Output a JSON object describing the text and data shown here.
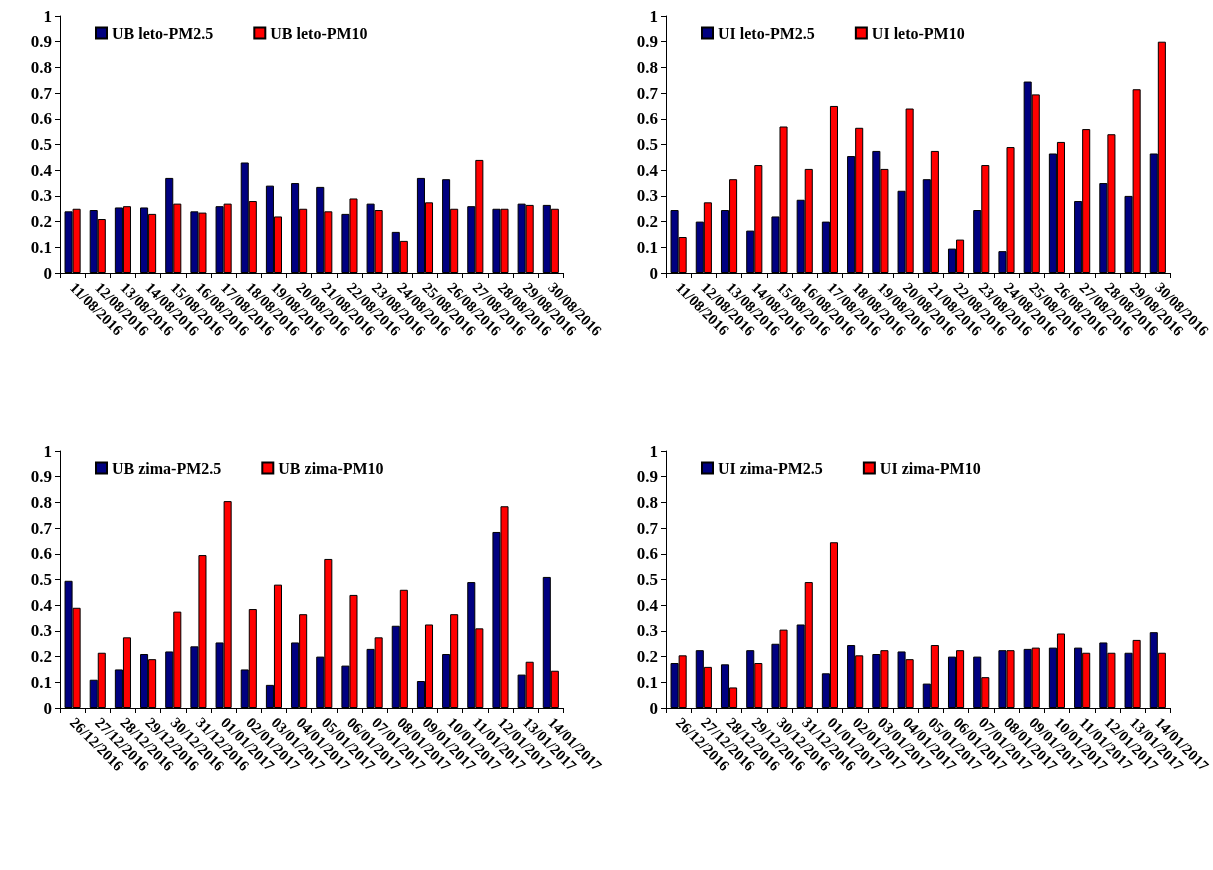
{
  "chart_data": [
    {
      "type": "bar",
      "categories": [
        "11/08/2016",
        "12/08/2016",
        "13/08/2016",
        "14/08/2016",
        "15/08/2016",
        "16/08/2016",
        "17/08/2016",
        "18/08/2016",
        "19/08/2016",
        "20/08/2016",
        "21/08/2016",
        "22/08/2016",
        "23/08/2016",
        "24/08/2016",
        "25/08/2016",
        "26/08/2016",
        "27/08/2016",
        "28/08/2016",
        "29/08/2016",
        "30/08/2016"
      ],
      "series": [
        {
          "name": "UB leto-PM2.5",
          "color": "#000080",
          "values": [
            0.24,
            0.245,
            0.255,
            0.255,
            0.37,
            0.24,
            0.26,
            0.43,
            0.34,
            0.35,
            0.335,
            0.23,
            0.27,
            0.16,
            0.37,
            0.365,
            0.26,
            0.25,
            0.27,
            0.265
          ]
        },
        {
          "name": "UB leto-PM10",
          "color": "#ff0000",
          "values": [
            0.25,
            0.21,
            0.26,
            0.23,
            0.27,
            0.235,
            0.27,
            0.28,
            0.22,
            0.25,
            0.24,
            0.29,
            0.245,
            0.125,
            0.275,
            0.25,
            0.44,
            0.25,
            0.265,
            0.25
          ]
        }
      ],
      "ylim": [
        0,
        1
      ],
      "yticks": [
        0,
        0.1,
        0.2,
        0.3,
        0.4,
        0.5,
        0.6,
        0.7,
        0.8,
        0.9,
        1
      ],
      "grid": false,
      "legend": "top"
    },
    {
      "type": "bar",
      "categories": [
        "11/08/2016",
        "12/08/2016",
        "13/08/2016",
        "14/08/2016",
        "15/08/2016",
        "16/08/2016",
        "17/08/2016",
        "18/08/2016",
        "19/08/2016",
        "20/08/2016",
        "21/08/2016",
        "22/08/2016",
        "23/08/2016",
        "24/08/2016",
        "25/08/2016",
        "26/08/2016",
        "27/08/2016",
        "28/08/2016",
        "29/08/2016",
        "30/08/2016"
      ],
      "series": [
        {
          "name": "UI leto-PM2.5",
          "color": "#000080",
          "values": [
            0.245,
            0.2,
            0.245,
            0.165,
            0.22,
            0.285,
            0.2,
            0.455,
            0.475,
            0.32,
            0.365,
            0.095,
            0.245,
            0.085,
            0.745,
            0.465,
            0.28,
            0.35,
            0.3,
            0.465
          ]
        },
        {
          "name": "UI leto-PM10",
          "color": "#ff0000",
          "values": [
            0.14,
            0.275,
            0.365,
            0.42,
            0.57,
            0.405,
            0.65,
            0.565,
            0.405,
            0.64,
            0.475,
            0.13,
            0.42,
            0.49,
            0.695,
            0.51,
            0.56,
            0.54,
            0.715,
            0.9
          ]
        }
      ],
      "ylim": [
        0,
        1
      ],
      "yticks": [
        0,
        0.1,
        0.2,
        0.3,
        0.4,
        0.5,
        0.6,
        0.7,
        0.8,
        0.9,
        1
      ],
      "grid": false,
      "legend": "top"
    },
    {
      "type": "bar",
      "categories": [
        "26/12/2016",
        "27/12/2016",
        "28/12/2016",
        "29/12/2016",
        "30/12/2016",
        "31/12/2016",
        "01/01/2017",
        "02/01/2017",
        "03/01/2017",
        "04/01/2017",
        "05/01/2017",
        "06/01/2017",
        "07/01/2017",
        "08/01/2017",
        "09/01/2017",
        "10/01/2017",
        "11/01/2017",
        "12/01/2017",
        "13/01/2017",
        "14/01/2017"
      ],
      "series": [
        {
          "name": "UB zima-PM2.5",
          "color": "#000080",
          "values": [
            0.495,
            0.11,
            0.15,
            0.21,
            0.22,
            0.24,
            0.255,
            0.15,
            0.09,
            0.255,
            0.2,
            0.165,
            0.23,
            0.32,
            0.105,
            0.21,
            0.49,
            0.685,
            0.13,
            0.51
          ]
        },
        {
          "name": "UB zima-PM10",
          "color": "#ff0000",
          "values": [
            0.39,
            0.215,
            0.275,
            0.19,
            0.375,
            0.595,
            0.805,
            0.385,
            0.48,
            0.365,
            0.58,
            0.44,
            0.275,
            0.46,
            0.325,
            0.365,
            0.31,
            0.785,
            0.18,
            0.145
          ]
        }
      ],
      "ylim": [
        0,
        1
      ],
      "yticks": [
        0,
        0.1,
        0.2,
        0.3,
        0.4,
        0.5,
        0.6,
        0.7,
        0.8,
        0.9,
        1
      ],
      "grid": false,
      "legend": "top"
    },
    {
      "type": "bar",
      "categories": [
        "26/12/2016",
        "27/12/2016",
        "28/12/2016",
        "29/12/2016",
        "30/12/2016",
        "31/12/2016",
        "01/01/2017",
        "02/01/2017",
        "03/01/2017",
        "04/01/2017",
        "05/01/2017",
        "06/01/2017",
        "07/01/2017",
        "08/01/2017",
        "09/01/2017",
        "10/01/2017",
        "11/01/2017",
        "12/01/2017",
        "13/01/2017",
        "14/01/2017"
      ],
      "series": [
        {
          "name": "UI zima-PM2.5",
          "color": "#000080",
          "values": [
            0.175,
            0.225,
            0.17,
            0.225,
            0.25,
            0.325,
            0.135,
            0.245,
            0.21,
            0.22,
            0.095,
            0.2,
            0.2,
            0.225,
            0.23,
            0.235,
            0.235,
            0.255,
            0.215,
            0.295
          ]
        },
        {
          "name": "UI zima-PM10",
          "color": "#ff0000",
          "values": [
            0.205,
            0.16,
            0.08,
            0.175,
            0.305,
            0.49,
            0.645,
            0.205,
            0.225,
            0.19,
            0.245,
            0.225,
            0.12,
            0.225,
            0.235,
            0.29,
            0.215,
            0.215,
            0.265,
            0.215
          ]
        }
      ],
      "ylim": [
        0,
        1
      ],
      "yticks": [
        0,
        0.1,
        0.2,
        0.3,
        0.4,
        0.5,
        0.6,
        0.7,
        0.8,
        0.9,
        1
      ],
      "grid": false,
      "legend": "top"
    }
  ]
}
